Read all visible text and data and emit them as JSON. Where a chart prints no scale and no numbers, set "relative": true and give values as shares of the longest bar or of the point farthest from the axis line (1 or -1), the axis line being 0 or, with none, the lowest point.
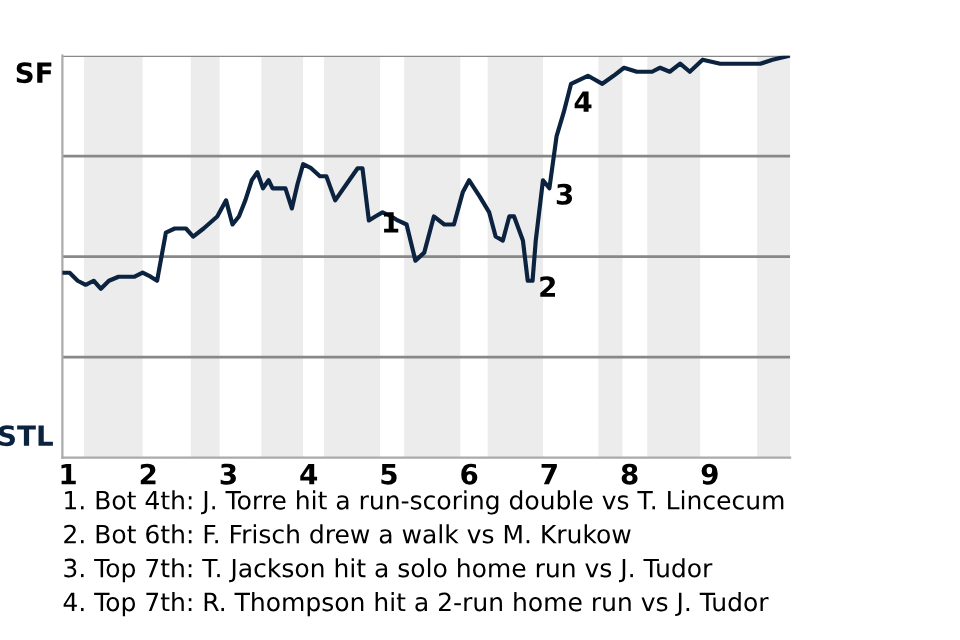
{
  "chart_data": {
    "type": "line",
    "relative": true,
    "x": [
      0.93,
      1.02,
      1.12,
      1.22,
      1.32,
      1.41,
      1.51,
      1.63,
      1.83,
      1.93,
      2.03,
      2.11,
      2.22,
      2.33,
      2.47,
      2.56,
      2.69,
      2.86,
      2.97,
      3.05,
      3.13,
      3.21,
      3.29,
      3.36,
      3.43,
      3.5,
      3.55,
      3.64,
      3.71,
      3.79,
      3.86,
      3.93,
      4.03,
      4.14,
      4.22,
      4.33,
      4.47,
      4.61,
      4.67,
      4.75,
      4.83,
      4.92,
      5.03,
      5.11,
      5.22,
      5.33,
      5.44,
      5.56,
      5.69,
      5.81,
      5.92,
      6.0,
      6.13,
      6.25,
      6.33,
      6.42,
      6.5,
      6.56,
      6.67,
      6.73,
      6.79,
      6.83,
      6.92,
      7.0,
      7.09,
      7.18,
      7.27,
      7.48,
      7.66,
      7.8,
      7.93,
      8.09,
      8.28,
      8.38,
      8.5,
      8.63,
      8.75,
      8.91,
      9.13,
      9.63,
      9.78,
      10.0
    ],
    "series": [
      {
        "color": "#0c2340",
        "values": [
          0.46,
          0.46,
          0.44,
          0.43,
          0.44,
          0.42,
          0.44,
          0.45,
          0.45,
          0.46,
          0.45,
          0.44,
          0.56,
          0.57,
          0.57,
          0.55,
          0.57,
          0.6,
          0.64,
          0.58,
          0.6,
          0.64,
          0.69,
          0.71,
          0.67,
          0.69,
          0.67,
          0.67,
          0.67,
          0.62,
          0.68,
          0.73,
          0.72,
          0.7,
          0.7,
          0.64,
          0.68,
          0.72,
          0.72,
          0.59,
          0.6,
          0.61,
          0.6,
          0.59,
          0.58,
          0.49,
          0.51,
          0.6,
          0.58,
          0.58,
          0.66,
          0.69,
          0.65,
          0.61,
          0.55,
          0.54,
          0.6,
          0.6,
          0.54,
          0.44,
          0.44,
          0.54,
          0.69,
          0.67,
          0.8,
          0.86,
          0.93,
          0.95,
          0.93,
          0.95,
          0.97,
          0.96,
          0.96,
          0.97,
          0.96,
          0.98,
          0.96,
          0.99,
          0.98,
          0.98,
          0.99,
          1.0
        ]
      }
    ],
    "xlim": [
      0.93,
      10
    ],
    "xticks": [
      1,
      2,
      3,
      4,
      5,
      6,
      7,
      8,
      9
    ],
    "grid": "y",
    "marker": "none",
    "line_style": "solid",
    "bands": [
      {
        "axis": "x",
        "from": 1.2,
        "to": 1.93,
        "color": "#ececec"
      },
      {
        "axis": "x",
        "from": 2.53,
        "to": 2.89,
        "color": "#ececec"
      },
      {
        "axis": "x",
        "from": 3.41,
        "to": 3.93,
        "color": "#ececec"
      },
      {
        "axis": "x",
        "from": 4.19,
        "to": 4.89,
        "color": "#ececec"
      },
      {
        "axis": "x",
        "from": 5.19,
        "to": 5.89,
        "color": "#ececec"
      },
      {
        "axis": "x",
        "from": 6.23,
        "to": 6.92,
        "color": "#ececec"
      },
      {
        "axis": "x",
        "from": 7.61,
        "to": 7.91,
        "color": "#ececec"
      },
      {
        "axis": "x",
        "from": 8.22,
        "to": 8.88,
        "color": "#ececec"
      },
      {
        "axis": "x",
        "from": 9.59,
        "to": 10,
        "color": "#ececec"
      }
    ],
    "annotations": [
      {
        "text": "1",
        "x": 4.83,
        "y": 0.6
      },
      {
        "text": "2",
        "x": 6.79,
        "y": 0.44
      },
      {
        "text": "3",
        "x": 7.0,
        "y": 0.67
      },
      {
        "text": "4",
        "x": 7.23,
        "y": 0.9
      },
      "SF",
      "STL",
      "1. Bot 4th: J. Torre hit a run-scoring double vs T. Lincecum",
      "2. Bot 6th: F. Frisch drew a walk vs M. Krukow",
      "3. Top 7th: T. Jackson hit a solo home run vs J. Tudor",
      "4. Top 7th: R. Thompson hit a 2-run home run vs J. Tudor"
    ]
  }
}
